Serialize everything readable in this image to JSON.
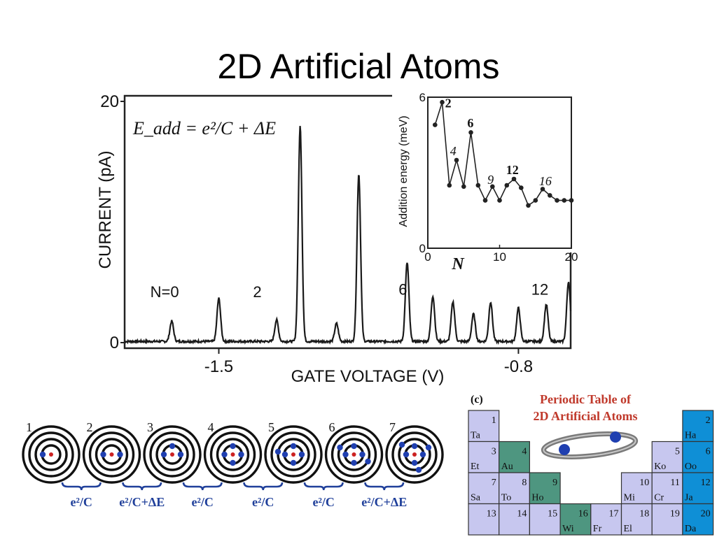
{
  "slide": {
    "title": "2D Artificial Atoms"
  },
  "chart_data": [
    {
      "type": "line",
      "name": "coulomb-blockade-peaks",
      "xlabel": "GATE VOLTAGE  (V)",
      "ylabel": "CURRENT  (pA)",
      "equation": "E_add = e²/C + ΔE",
      "x_ticks": [
        "-1.5",
        "-0.8"
      ],
      "x_tick_values": [
        -1.5,
        -0.8
      ],
      "xlim": [
        -1.72,
        -0.678
      ],
      "y_ticks": [
        "0",
        "20"
      ],
      "ylim": [
        0,
        20
      ],
      "annotations": [
        {
          "text": "N=0",
          "x": -1.66,
          "y": 3.8
        },
        {
          "text": "2",
          "x": -1.42,
          "y": 3.8
        },
        {
          "text": "6",
          "x": -1.08,
          "y": 4.0
        },
        {
          "text": "12",
          "x": -0.77,
          "y": 4.0
        }
      ],
      "peaks": [
        {
          "x": -1.61,
          "height": 1.7
        },
        {
          "x": -1.5,
          "height": 3.6
        },
        {
          "x": -1.365,
          "height": 1.8
        },
        {
          "x": -1.31,
          "height": 18.0
        },
        {
          "x": -1.225,
          "height": 1.5
        },
        {
          "x": -1.173,
          "height": 14.0
        },
        {
          "x": -1.06,
          "height": 6.6
        },
        {
          "x": -1.0,
          "height": 3.8
        },
        {
          "x": -0.953,
          "height": 3.3
        },
        {
          "x": -0.905,
          "height": 2.3
        },
        {
          "x": -0.865,
          "height": 3.3
        },
        {
          "x": -0.8,
          "height": 2.8
        },
        {
          "x": -0.735,
          "height": 3.1
        },
        {
          "x": -0.683,
          "height": 5.0
        }
      ],
      "baseline": 0.1
    },
    {
      "type": "line",
      "name": "addition-energy-inset",
      "xlabel": "N",
      "ylabel": "Addition energy  (meV)",
      "x_ticks": [
        "0",
        "10",
        "20"
      ],
      "x_tick_values": [
        0,
        10,
        20
      ],
      "xlim": [
        0,
        20
      ],
      "y_ticks": [
        "0",
        "6"
      ],
      "y_tick_values": [
        0,
        6
      ],
      "ylim": [
        0,
        6
      ],
      "x": [
        1,
        2,
        3,
        4,
        5,
        6,
        7,
        8,
        9,
        10,
        11,
        12,
        13,
        14,
        15,
        16,
        17,
        18,
        19,
        20
      ],
      "values": [
        4.9,
        5.8,
        2.5,
        3.5,
        2.45,
        4.6,
        2.5,
        1.9,
        2.45,
        1.9,
        2.5,
        2.75,
        2.4,
        1.7,
        1.9,
        2.35,
        2.1,
        1.9,
        1.9,
        1.9
      ],
      "annotations": [
        {
          "text": "2",
          "x": 2.4,
          "y": 5.6,
          "style": "bold"
        },
        {
          "text": "6",
          "x": 5.5,
          "y": 4.8,
          "style": "bold"
        },
        {
          "text": "4",
          "x": 3.1,
          "y": 3.7,
          "style": "italic"
        },
        {
          "text": "9",
          "x": 8.3,
          "y": 2.55,
          "style": "italic"
        },
        {
          "text": "12",
          "x": 10.9,
          "y": 2.95,
          "style": "bold"
        },
        {
          "text": "16",
          "x": 15.5,
          "y": 2.5,
          "style": "italic"
        }
      ]
    }
  ],
  "shells": {
    "labels": [
      "1",
      "2",
      "3",
      "4",
      "5",
      "6",
      "7"
    ],
    "electron_counts": [
      1,
      2,
      3,
      4,
      5,
      6,
      7
    ],
    "braces": [
      "e²/C",
      "e²/C+ΔE",
      "e²/C",
      "e²/C",
      "e²/C",
      "e²/C+ΔE"
    ],
    "electron_color": "#1f3fb0",
    "nucleus_color": "#cc2222",
    "brace_color": "#1f3f9a"
  },
  "periodic_table": {
    "panel_label": "(c)",
    "title_line1": "Periodic Table of",
    "title_line2": "2D Artificial Atoms",
    "title_color": "#c0392b",
    "colors": {
      "lavender": "#c7c7ef",
      "teal": "#4e9680",
      "blue": "#0f8fd6"
    },
    "cells": [
      {
        "n": "1",
        "sym": "Ta",
        "row": 0,
        "col": 0,
        "kind": "lavender"
      },
      {
        "n": "2",
        "sym": "Ha",
        "row": 0,
        "col": 7,
        "kind": "blue"
      },
      {
        "n": "3",
        "sym": "Et",
        "row": 1,
        "col": 0,
        "kind": "lavender"
      },
      {
        "n": "4",
        "sym": "Au",
        "row": 1,
        "col": 1,
        "kind": "teal"
      },
      {
        "n": "5",
        "sym": "Ko",
        "row": 1,
        "col": 6,
        "kind": "lavender"
      },
      {
        "n": "6",
        "sym": "Oo",
        "row": 1,
        "col": 7,
        "kind": "blue"
      },
      {
        "n": "7",
        "sym": "Sa",
        "row": 2,
        "col": 0,
        "kind": "lavender"
      },
      {
        "n": "8",
        "sym": "To",
        "row": 2,
        "col": 1,
        "kind": "lavender"
      },
      {
        "n": "9",
        "sym": "Ho",
        "row": 2,
        "col": 2,
        "kind": "teal"
      },
      {
        "n": "10",
        "sym": "Mi",
        "row": 2,
        "col": 5,
        "kind": "lavender"
      },
      {
        "n": "11",
        "sym": "Cr",
        "row": 2,
        "col": 6,
        "kind": "lavender"
      },
      {
        "n": "12",
        "sym": "Ja",
        "row": 2,
        "col": 7,
        "kind": "blue"
      },
      {
        "n": "13",
        "sym": "",
        "row": 3,
        "col": 0,
        "kind": "lavender"
      },
      {
        "n": "14",
        "sym": "",
        "row": 3,
        "col": 1,
        "kind": "lavender"
      },
      {
        "n": "15",
        "sym": "",
        "row": 3,
        "col": 2,
        "kind": "lavender"
      },
      {
        "n": "16",
        "sym": "Wi",
        "row": 3,
        "col": 3,
        "kind": "teal"
      },
      {
        "n": "17",
        "sym": "Fr",
        "row": 3,
        "col": 4,
        "kind": "lavender"
      },
      {
        "n": "18",
        "sym": "El",
        "row": 3,
        "col": 5,
        "kind": "lavender"
      },
      {
        "n": "19",
        "sym": "",
        "row": 3,
        "col": 6,
        "kind": "lavender"
      },
      {
        "n": "20",
        "sym": "Da",
        "row": 3,
        "col": 7,
        "kind": "blue"
      }
    ]
  }
}
